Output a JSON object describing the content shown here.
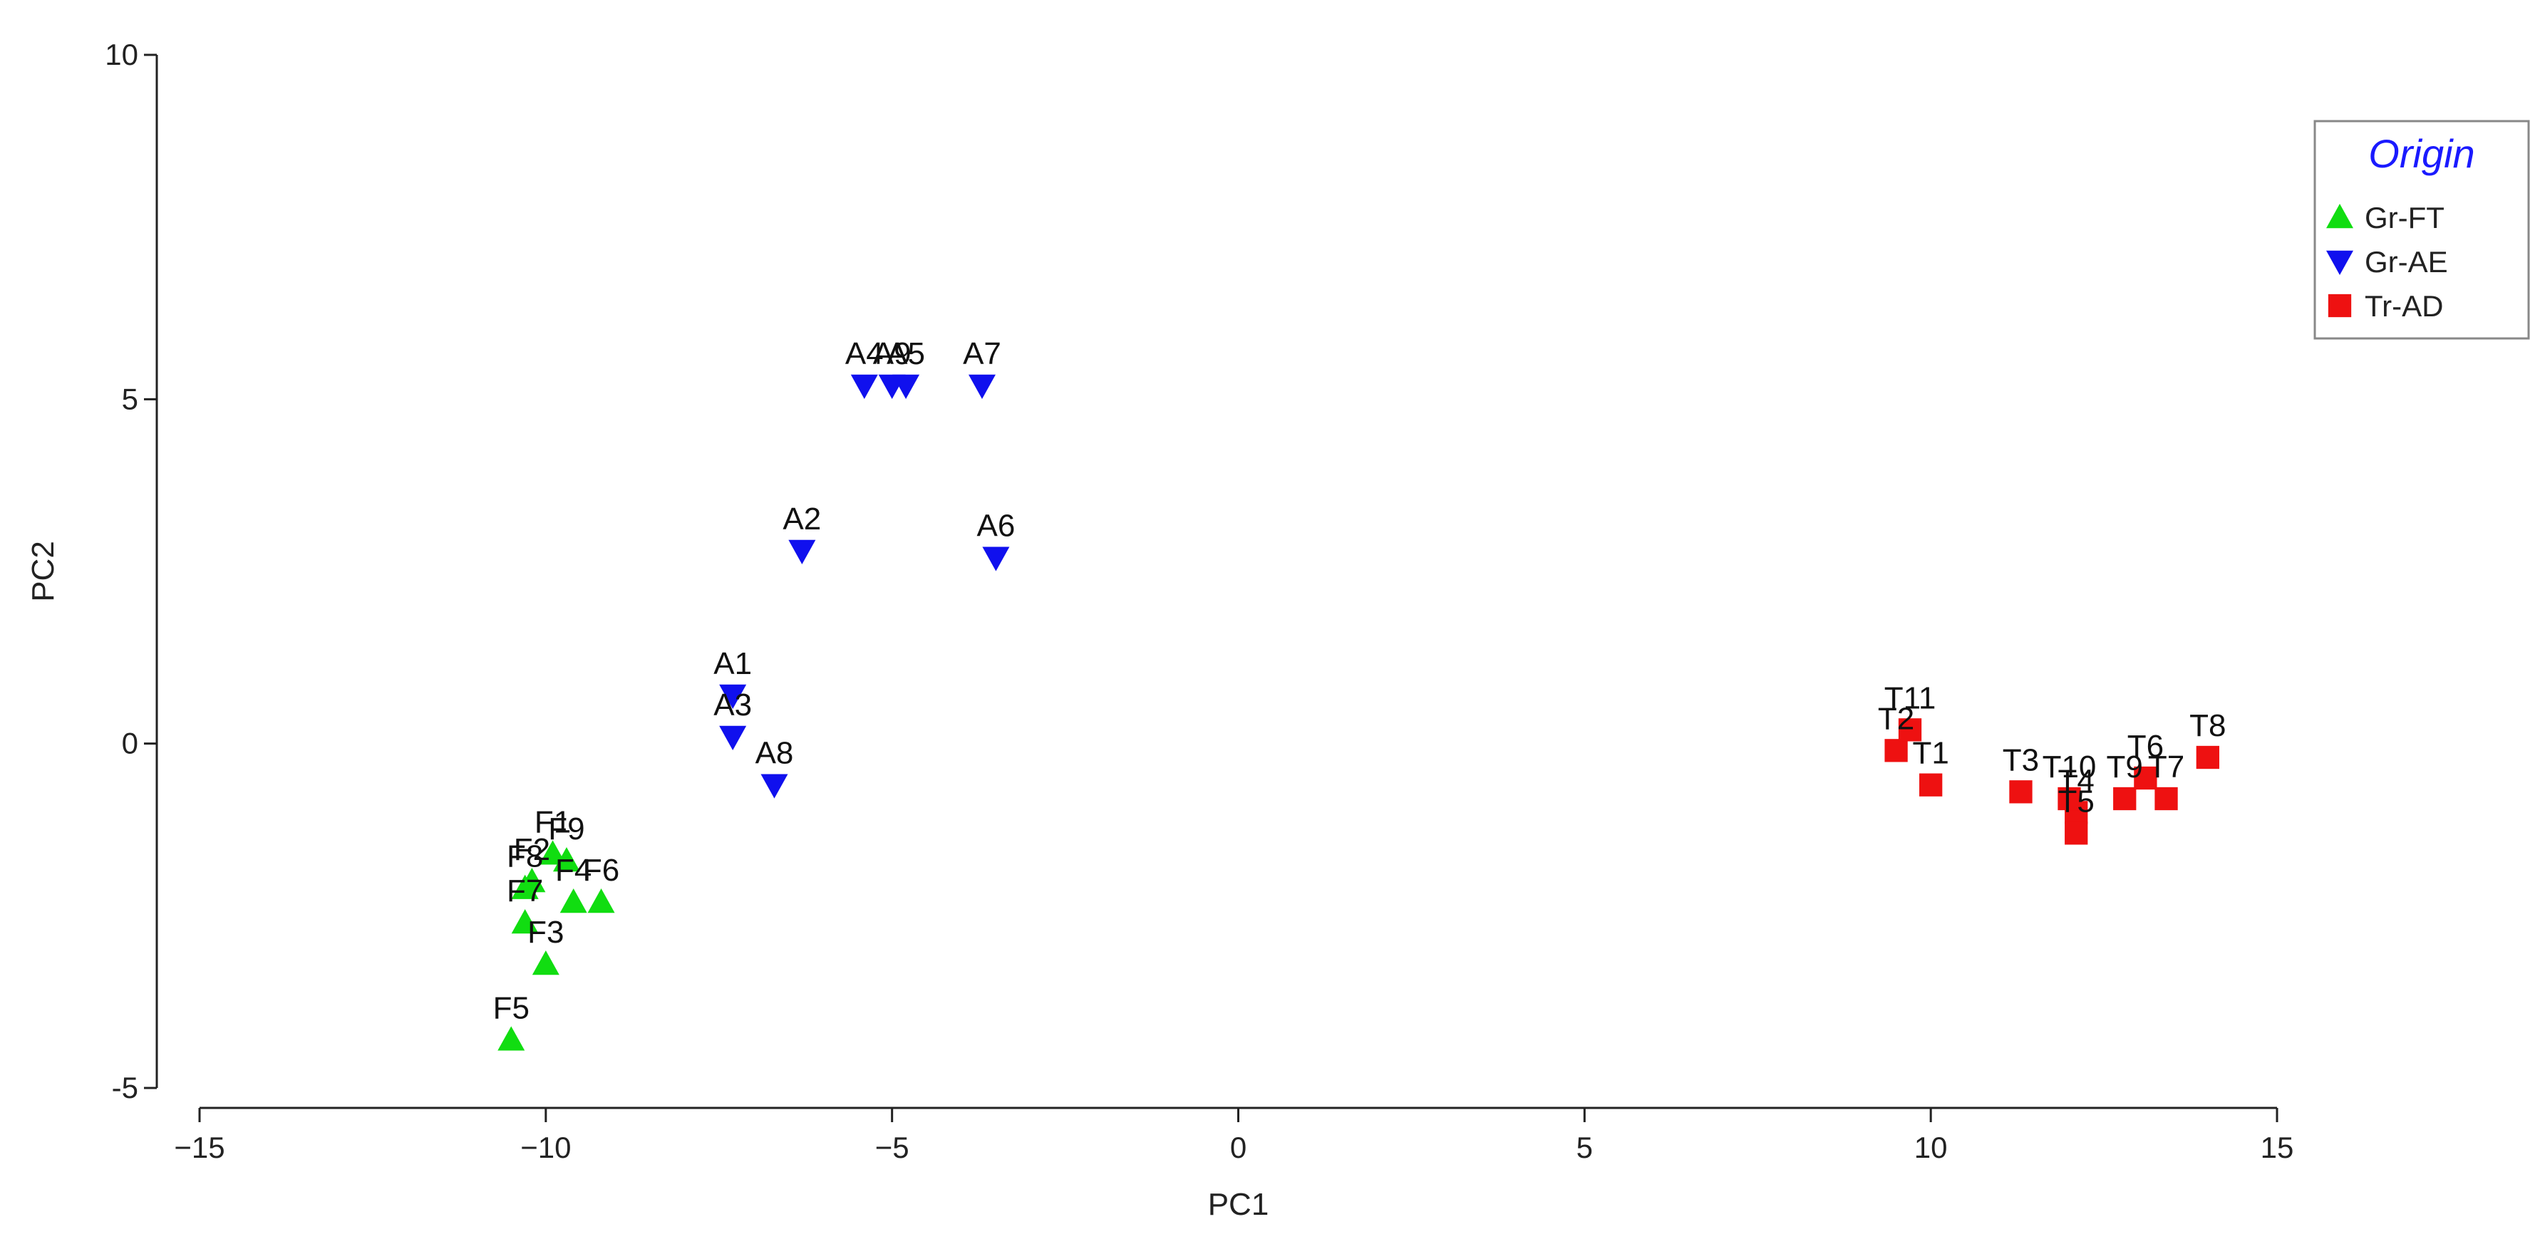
{
  "chart_data": {
    "type": "scatter",
    "xlabel": "PC1",
    "ylabel": "PC2",
    "xlim": [
      -15,
      15
    ],
    "ylim": [
      -5,
      10
    ],
    "xticks": [
      -15,
      -10,
      -5,
      0,
      5,
      10,
      15
    ],
    "yticks": [
      -5,
      0,
      5,
      10
    ],
    "legend": {
      "title": "Origin",
      "position": "top-right"
    },
    "series": [
      {
        "name": "Gr-FT",
        "marker": "triangle-up",
        "color": "#11dd11",
        "points": [
          {
            "label": "F1",
            "x": -9.9,
            "y": -1.6
          },
          {
            "label": "F2",
            "x": -10.2,
            "y": -2.0
          },
          {
            "label": "F3",
            "x": -10.0,
            "y": -3.2
          },
          {
            "label": "F4",
            "x": -9.6,
            "y": -2.3
          },
          {
            "label": "F5",
            "x": -10.5,
            "y": -4.3
          },
          {
            "label": "F6",
            "x": -9.2,
            "y": -2.3
          },
          {
            "label": "F7",
            "x": -10.3,
            "y": -2.6
          },
          {
            "label": "F8",
            "x": -10.3,
            "y": -2.1
          },
          {
            "label": "F9",
            "x": -9.7,
            "y": -1.7
          }
        ]
      },
      {
        "name": "Gr-AE",
        "marker": "triangle-down",
        "color": "#1010ee",
        "points": [
          {
            "label": "A1",
            "x": -7.3,
            "y": 0.7
          },
          {
            "label": "A2",
            "x": -6.3,
            "y": 2.8
          },
          {
            "label": "A3",
            "x": -7.3,
            "y": 0.1
          },
          {
            "label": "A4",
            "x": -5.4,
            "y": 5.2
          },
          {
            "label": "A5",
            "x": -4.8,
            "y": 5.2
          },
          {
            "label": "A6",
            "x": -3.5,
            "y": 2.7
          },
          {
            "label": "A7",
            "x": -3.7,
            "y": 5.2
          },
          {
            "label": "A8",
            "x": -6.7,
            "y": -0.6
          },
          {
            "label": "A9",
            "x": -5.0,
            "y": 5.2
          }
        ]
      },
      {
        "name": "Tr-AD",
        "marker": "square",
        "color": "#ee1111",
        "points": [
          {
            "label": "T1",
            "x": 10.0,
            "y": -0.6
          },
          {
            "label": "T2",
            "x": 9.5,
            "y": -0.1
          },
          {
            "label": "T3",
            "x": 11.3,
            "y": -0.7
          },
          {
            "label": "T4",
            "x": 12.1,
            "y": -1.0
          },
          {
            "label": "T5",
            "x": 12.1,
            "y": -1.3
          },
          {
            "label": "T6",
            "x": 13.1,
            "y": -0.5
          },
          {
            "label": "T7",
            "x": 13.4,
            "y": -0.8
          },
          {
            "label": "T8",
            "x": 14.0,
            "y": -0.2
          },
          {
            "label": "T9",
            "x": 12.8,
            "y": -0.8
          },
          {
            "label": "T10",
            "x": 12.0,
            "y": -0.8
          },
          {
            "label": "T11",
            "x": 9.7,
            "y": 0.2
          }
        ]
      }
    ]
  }
}
